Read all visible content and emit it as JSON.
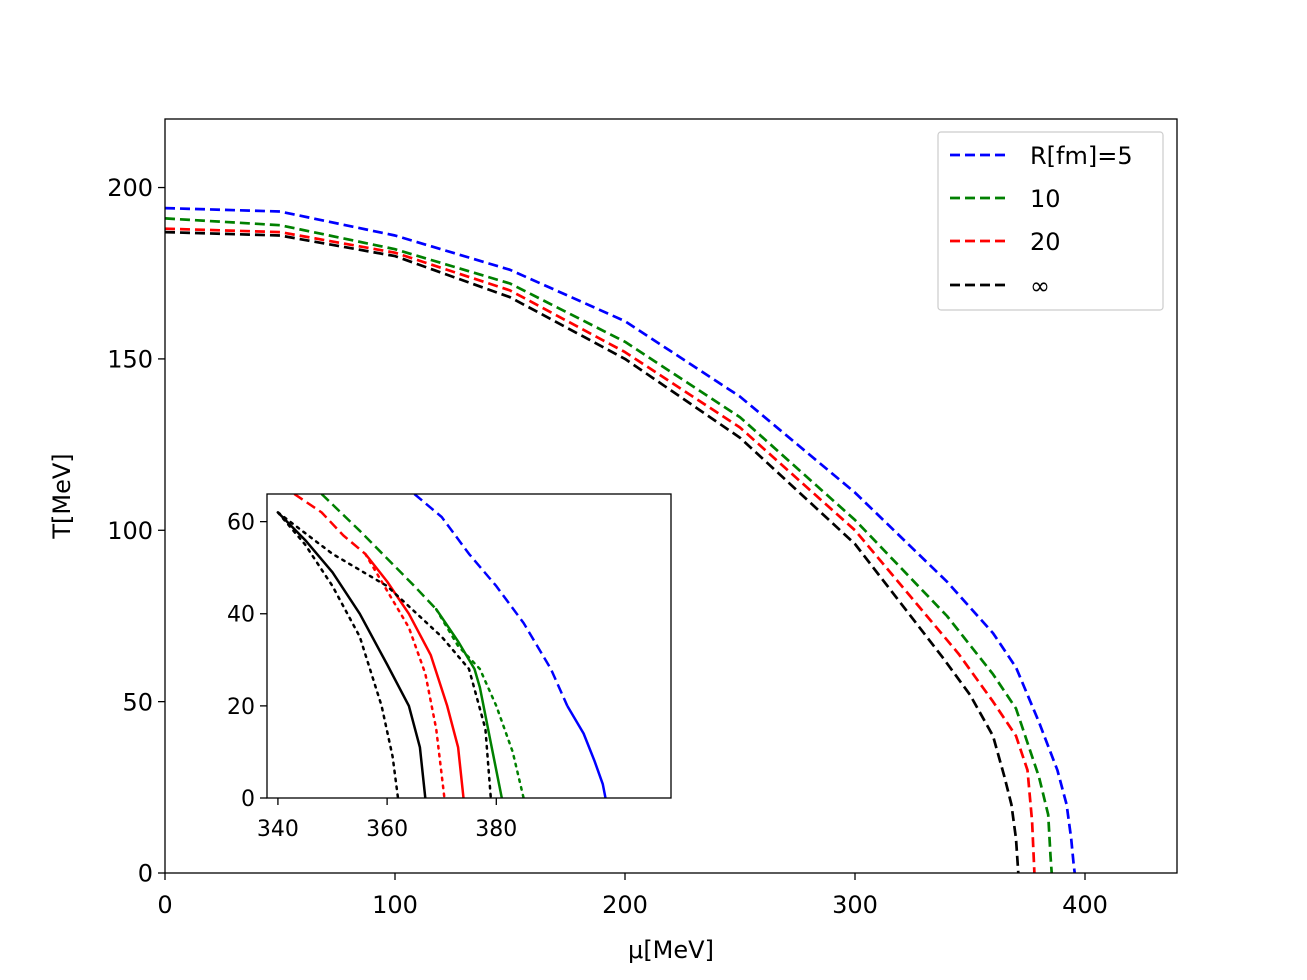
{
  "chart_data": [
    {
      "type": "line",
      "xlabel": "μ[MeV]",
      "ylabel": "T[MeV]",
      "xlim": [
        0,
        440
      ],
      "ylim": [
        0,
        220
      ],
      "xticks": [
        0,
        100,
        200,
        300,
        400
      ],
      "yticks": [
        0,
        50,
        100,
        150,
        200
      ],
      "grid": false,
      "legend_position": "top-right",
      "series": [
        {
          "name": "R[fm]=5",
          "color": "#0000ff",
          "style": "dashed",
          "x": [
            0,
            50,
            100,
            150,
            200,
            250,
            300,
            340,
            360,
            370,
            380,
            388,
            392,
            394,
            395,
            395.5
          ],
          "y": [
            194,
            193,
            186,
            176,
            161,
            139,
            111,
            85,
            70,
            60,
            44,
            30,
            20,
            10,
            3,
            0
          ]
        },
        {
          "name": "10",
          "color": "#008000",
          "style": "dashed",
          "x": [
            0,
            50,
            100,
            150,
            200,
            250,
            300,
            340,
            360,
            370,
            375,
            380,
            384,
            385,
            385.5
          ],
          "y": [
            191,
            189,
            182,
            172,
            155,
            133,
            103,
            75,
            58,
            48,
            38,
            28,
            17,
            5,
            0
          ]
        },
        {
          "name": "20",
          "color": "#ff0000",
          "style": "dashed",
          "x": [
            0,
            50,
            100,
            150,
            200,
            250,
            300,
            345,
            360,
            370,
            375,
            377,
            378
          ],
          "y": [
            188,
            187,
            181,
            170,
            152,
            130,
            100,
            64,
            50,
            40,
            30,
            15,
            0
          ]
        },
        {
          "name": "∞",
          "color": "#000000",
          "style": "dashed",
          "x": [
            0,
            50,
            100,
            150,
            200,
            250,
            300,
            338,
            350,
            360,
            365,
            368,
            370,
            371
          ],
          "y": [
            187,
            186,
            180,
            168,
            150,
            127,
            96,
            63,
            52,
            40,
            28,
            20,
            10,
            0
          ]
        }
      ]
    },
    {
      "type": "line",
      "role": "inset",
      "xlim": [
        338,
        412
      ],
      "ylim": [
        0,
        66
      ],
      "xticks": [
        340,
        360,
        380
      ],
      "yticks": [
        0,
        20,
        40,
        60
      ],
      "grid": false,
      "series": [
        {
          "name": "",
          "color": "#0000ff",
          "style": "dashed",
          "x": [
            365,
            370,
            375,
            380,
            385,
            390,
            393
          ],
          "y": [
            66,
            61,
            53,
            46,
            38,
            28,
            20
          ]
        },
        {
          "name": "",
          "color": "#0000ff",
          "style": "solid",
          "x": [
            393,
            396,
            398,
            399.5,
            400
          ],
          "y": [
            20,
            14,
            8,
            3,
            0
          ]
        },
        {
          "name": "",
          "color": "#008000",
          "style": "dashed",
          "x": [
            348,
            355,
            360,
            365,
            369
          ],
          "y": [
            66,
            58,
            52,
            46,
            41
          ]
        },
        {
          "name": "",
          "color": "#008000",
          "style": "solid",
          "x": [
            369,
            373,
            376,
            377,
            379,
            381
          ],
          "y": [
            41,
            34,
            28,
            24,
            12,
            0
          ]
        },
        {
          "name": "",
          "color": "#008000",
          "style": "dotted",
          "x": [
            369,
            373,
            377,
            380,
            383,
            385
          ],
          "y": [
            41,
            33,
            28,
            20,
            10,
            0
          ]
        },
        {
          "name": "",
          "color": "#ff0000",
          "style": "dashed",
          "x": [
            343,
            348,
            352,
            356
          ],
          "y": [
            66,
            62,
            57,
            53
          ]
        },
        {
          "name": "",
          "color": "#ff0000",
          "style": "solid",
          "x": [
            356,
            360,
            364,
            368,
            371,
            373,
            374
          ],
          "y": [
            53,
            47,
            40,
            31,
            20,
            11,
            0
          ]
        },
        {
          "name": "",
          "color": "#ff0000",
          "style": "dotted",
          "x": [
            356,
            360,
            364,
            367,
            369,
            370,
            370.5
          ],
          "y": [
            53,
            45,
            37,
            27,
            15,
            5,
            0
          ]
        },
        {
          "name": "",
          "color": "#000000",
          "style": "solid",
          "x": [
            340,
            345,
            350,
            355,
            360,
            364,
            366,
            367
          ],
          "y": [
            62,
            56,
            49,
            40,
            29,
            20,
            11,
            0
          ]
        },
        {
          "name": "",
          "color": "#000000",
          "style": "dotted",
          "x": [
            340,
            345,
            350,
            355,
            359,
            361,
            362
          ],
          "y": [
            62,
            55,
            46,
            35,
            20,
            9,
            0
          ]
        },
        {
          "name": "",
          "color": "#000000",
          "style": "dotted",
          "x": [
            340,
            350,
            360,
            370,
            375,
            378,
            379
          ],
          "y": [
            62,
            53,
            46,
            35,
            28,
            15,
            0
          ]
        }
      ]
    }
  ]
}
